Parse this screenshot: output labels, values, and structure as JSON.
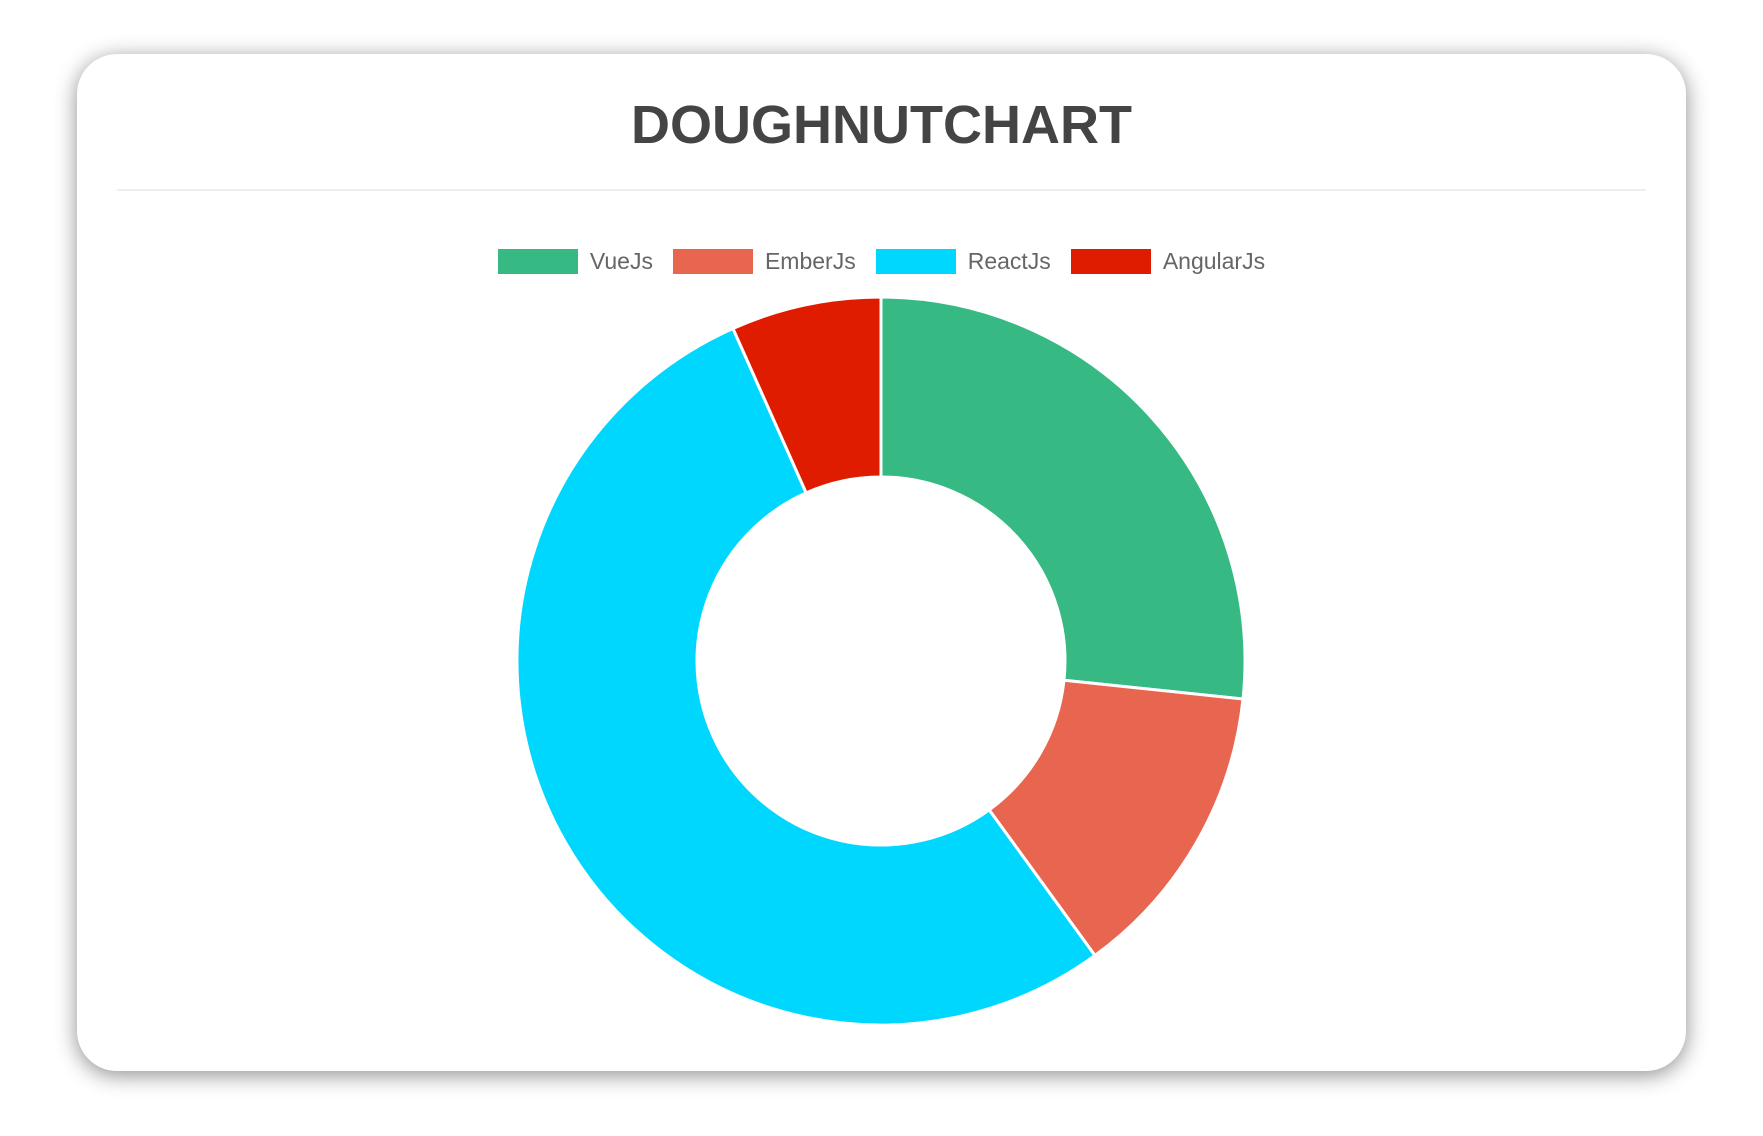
{
  "chart_data": {
    "type": "doughnut",
    "title": "DOUGHNUTCHART",
    "categories": [
      "VueJs",
      "EmberJs",
      "ReactJs",
      "AngularJs"
    ],
    "values": [
      40,
      20,
      80,
      10
    ],
    "colors": [
      "#36b982",
      "#e8664f",
      "#00d7fe",
      "#e01c00"
    ],
    "legend": "top"
  }
}
